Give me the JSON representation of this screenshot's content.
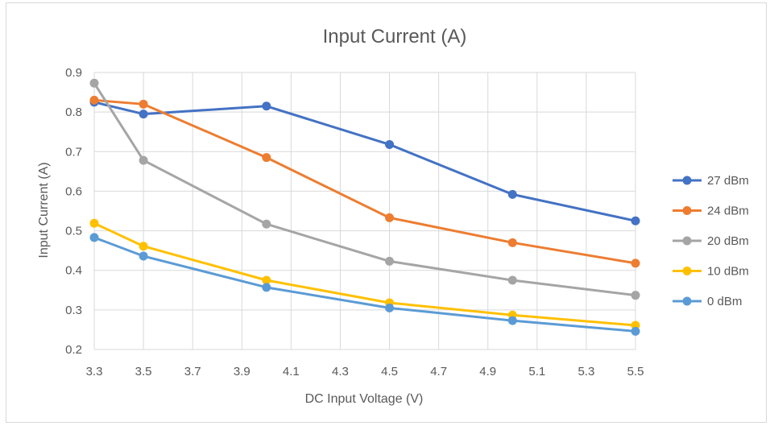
{
  "chart_data": {
    "type": "line",
    "title": "Input Current (A)",
    "xlabel": "DC Input Voltage (V)",
    "ylabel": "Input Current (A)",
    "xlim": [
      3.3,
      5.5
    ],
    "ylim": [
      0.2,
      0.9
    ],
    "x_ticks": [
      "3.3",
      "3.5",
      "3.7",
      "3.9",
      "4.1",
      "4.3",
      "4.5",
      "4.7",
      "4.9",
      "5.1",
      "5.3",
      "5.5"
    ],
    "y_ticks": [
      "0.2",
      "0.3",
      "0.4",
      "0.5",
      "0.6",
      "0.7",
      "0.8",
      "0.9"
    ],
    "x": [
      3.3,
      3.5,
      4.0,
      4.5,
      5.0,
      5.5
    ],
    "grid": true,
    "legend_position": "right",
    "series": [
      {
        "name": "27 dBm",
        "color": "#4472c4",
        "values": [
          0.825,
          0.795,
          0.815,
          0.718,
          0.592,
          0.525
        ]
      },
      {
        "name": "24 dBm",
        "color": "#ed7d31",
        "values": [
          0.83,
          0.82,
          0.685,
          0.533,
          0.47,
          0.418
        ]
      },
      {
        "name": "20 dBm",
        "color": "#a5a5a5",
        "values": [
          0.873,
          0.678,
          0.517,
          0.423,
          0.375,
          0.337
        ]
      },
      {
        "name": "10 dBm",
        "color": "#ffc000",
        "values": [
          0.519,
          0.461,
          0.375,
          0.318,
          0.287,
          0.261
        ]
      },
      {
        "name": "0 dBm",
        "color": "#5b9bd5",
        "values": [
          0.483,
          0.436,
          0.357,
          0.305,
          0.273,
          0.246
        ]
      }
    ]
  }
}
